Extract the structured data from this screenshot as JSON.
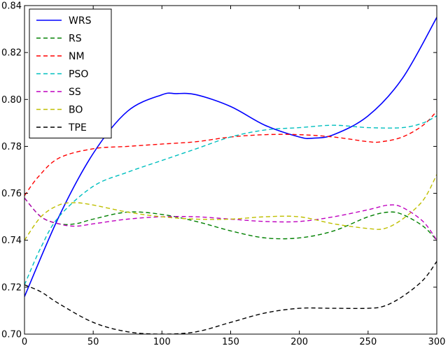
{
  "chart_data": {
    "type": "line",
    "title": "",
    "xlabel": "",
    "ylabel": "",
    "xlim": [
      0,
      300
    ],
    "ylim": [
      0.7,
      0.84
    ],
    "xticks": [
      0,
      50,
      100,
      150,
      200,
      250,
      300
    ],
    "xtick_labels": [
      "0",
      "50",
      "100",
      "150",
      "200",
      "250",
      "300"
    ],
    "yticks": [
      0.7,
      0.72,
      0.74,
      0.76,
      0.78,
      0.8,
      0.82,
      0.84
    ],
    "ytick_labels": [
      "0.70",
      "0.72",
      "0.74",
      "0.76",
      "0.78",
      "0.80",
      "0.82",
      "0.84"
    ],
    "grid": false,
    "legend_position": "top-left",
    "series": [
      {
        "name": "WRS",
        "color": "#0000ff",
        "dash": "solid",
        "x": [
          0,
          25,
          50,
          75,
          100,
          110,
          125,
          150,
          175,
          200,
          210,
          225,
          250,
          275,
          300
        ],
        "y": [
          0.716,
          0.75,
          0.777,
          0.795,
          0.802,
          0.8025,
          0.802,
          0.797,
          0.789,
          0.784,
          0.7835,
          0.785,
          0.793,
          0.809,
          0.835
        ]
      },
      {
        "name": "RS",
        "color": "#008000",
        "dash": "dashed",
        "x": [
          0,
          12,
          25,
          37,
          50,
          75,
          100,
          125,
          150,
          175,
          200,
          225,
          250,
          265,
          275,
          290,
          300
        ],
        "y": [
          0.758,
          0.75,
          0.747,
          0.747,
          0.749,
          0.752,
          0.751,
          0.748,
          0.744,
          0.741,
          0.741,
          0.744,
          0.75,
          0.752,
          0.751,
          0.746,
          0.74
        ]
      },
      {
        "name": "NM",
        "color": "#ff0000",
        "dash": "dashed",
        "x": [
          0,
          10,
          25,
          50,
          75,
          100,
          125,
          150,
          175,
          200,
          225,
          250,
          260,
          275,
          290,
          300
        ],
        "y": [
          0.759,
          0.767,
          0.775,
          0.779,
          0.78,
          0.781,
          0.782,
          0.784,
          0.785,
          0.785,
          0.784,
          0.782,
          0.782,
          0.784,
          0.789,
          0.795
        ]
      },
      {
        "name": "PSO",
        "color": "#00bfbf",
        "dash": "dashed",
        "x": [
          0,
          12,
          25,
          50,
          75,
          100,
          125,
          150,
          175,
          200,
          225,
          250,
          275,
          290,
          300
        ],
        "y": [
          0.721,
          0.737,
          0.75,
          0.763,
          0.769,
          0.774,
          0.779,
          0.784,
          0.787,
          0.788,
          0.789,
          0.788,
          0.788,
          0.79,
          0.793
        ]
      },
      {
        "name": "SS",
        "color": "#bf00bf",
        "dash": "dashed",
        "x": [
          0,
          12,
          25,
          37,
          50,
          75,
          100,
          125,
          150,
          175,
          200,
          225,
          250,
          265,
          275,
          290,
          300
        ],
        "y": [
          0.758,
          0.75,
          0.747,
          0.746,
          0.747,
          0.749,
          0.75,
          0.75,
          0.749,
          0.748,
          0.748,
          0.75,
          0.753,
          0.755,
          0.754,
          0.748,
          0.74
        ]
      },
      {
        "name": "BO",
        "color": "#bfbf00",
        "dash": "dashed",
        "x": [
          0,
          12,
          25,
          37,
          50,
          75,
          100,
          125,
          150,
          175,
          200,
          225,
          250,
          262,
          275,
          290,
          300
        ],
        "y": [
          0.74,
          0.75,
          0.755,
          0.756,
          0.755,
          0.752,
          0.75,
          0.749,
          0.749,
          0.75,
          0.75,
          0.747,
          0.745,
          0.745,
          0.749,
          0.757,
          0.768
        ]
      },
      {
        "name": "TPE",
        "color": "#000000",
        "dash": "dashed",
        "x": [
          0,
          12,
          25,
          50,
          75,
          100,
          125,
          150,
          175,
          200,
          225,
          250,
          262,
          275,
          290,
          300
        ],
        "y": [
          0.721,
          0.718,
          0.713,
          0.705,
          0.701,
          0.7,
          0.701,
          0.705,
          0.709,
          0.711,
          0.711,
          0.711,
          0.712,
          0.716,
          0.723,
          0.731
        ]
      }
    ]
  }
}
